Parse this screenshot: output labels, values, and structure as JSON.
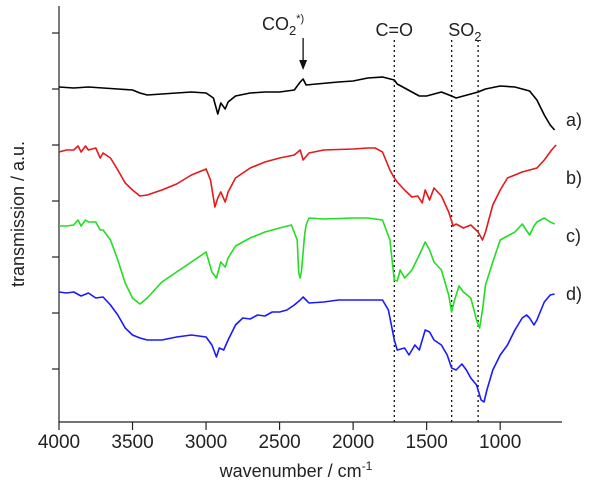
{
  "chart_data": {
    "type": "line",
    "xlabel": "wavenumber / cm",
    "xlabel_sup": "-1",
    "ylabel": "transmission / a.u.",
    "xlim": [
      4000,
      600
    ],
    "x_ticks": [
      4000,
      3500,
      3000,
      2500,
      2000,
      1500,
      1000
    ],
    "x_tick_labels": [
      "4000",
      "3500",
      "3000",
      "2500",
      "2000",
      "1500",
      "1000"
    ],
    "annotations": [
      {
        "label": "CO",
        "sub": "2",
        "sup": "*)",
        "x": 2340,
        "arrow": true
      },
      {
        "label": "C=O",
        "x": 1720,
        "dashed_line": true
      },
      {
        "label": "SO",
        "sub": "2",
        "x_lines": [
          1330,
          1150
        ]
      }
    ],
    "series": [
      {
        "name": "a)",
        "color": "#000000",
        "points": [
          [
            4000,
            87
          ],
          [
            3900,
            88
          ],
          [
            3800,
            87
          ],
          [
            3700,
            88
          ],
          [
            3600,
            89
          ],
          [
            3500,
            90
          ],
          [
            3450,
            93
          ],
          [
            3400,
            95
          ],
          [
            3300,
            94
          ],
          [
            3200,
            93
          ],
          [
            3100,
            92
          ],
          [
            3000,
            93
          ],
          [
            2950,
            98
          ],
          [
            2920,
            114
          ],
          [
            2900,
            103
          ],
          [
            2870,
            109
          ],
          [
            2850,
            102
          ],
          [
            2800,
            96
          ],
          [
            2700,
            93
          ],
          [
            2600,
            92
          ],
          [
            2500,
            92
          ],
          [
            2400,
            90
          ],
          [
            2360,
            82
          ],
          [
            2340,
            79
          ],
          [
            2320,
            85
          ],
          [
            2250,
            84
          ],
          [
            2100,
            82
          ],
          [
            2000,
            81
          ],
          [
            1900,
            78
          ],
          [
            1800,
            77
          ],
          [
            1720,
            80
          ],
          [
            1700,
            84
          ],
          [
            1650,
            88
          ],
          [
            1600,
            92
          ],
          [
            1550,
            96
          ],
          [
            1500,
            96
          ],
          [
            1450,
            94
          ],
          [
            1400,
            92
          ],
          [
            1330,
            96
          ],
          [
            1300,
            98
          ],
          [
            1250,
            96
          ],
          [
            1200,
            94
          ],
          [
            1150,
            92
          ],
          [
            1100,
            89
          ],
          [
            1000,
            86
          ],
          [
            900,
            87
          ],
          [
            800,
            91
          ],
          [
            750,
            100
          ],
          [
            700,
            115
          ],
          [
            660,
            125
          ],
          [
            630,
            130
          ]
        ]
      },
      {
        "name": "b)",
        "color": "#e31a1c",
        "points": [
          [
            4000,
            152
          ],
          [
            3950,
            150
          ],
          [
            3900,
            150
          ],
          [
            3870,
            146
          ],
          [
            3850,
            152
          ],
          [
            3820,
            146
          ],
          [
            3800,
            150
          ],
          [
            3750,
            148
          ],
          [
            3720,
            158
          ],
          [
            3700,
            153
          ],
          [
            3650,
            158
          ],
          [
            3600,
            170
          ],
          [
            3550,
            183
          ],
          [
            3500,
            190
          ],
          [
            3450,
            196
          ],
          [
            3400,
            195
          ],
          [
            3300,
            190
          ],
          [
            3200,
            184
          ],
          [
            3100,
            175
          ],
          [
            3000,
            169
          ],
          [
            2970,
            180
          ],
          [
            2940,
            207
          ],
          [
            2920,
            198
          ],
          [
            2900,
            192
          ],
          [
            2870,
            202
          ],
          [
            2850,
            192
          ],
          [
            2800,
            178
          ],
          [
            2700,
            168
          ],
          [
            2600,
            162
          ],
          [
            2500,
            158
          ],
          [
            2400,
            155
          ],
          [
            2360,
            150
          ],
          [
            2340,
            160
          ],
          [
            2300,
            153
          ],
          [
            2200,
            150
          ],
          [
            2000,
            149
          ],
          [
            1900,
            148
          ],
          [
            1850,
            148
          ],
          [
            1800,
            152
          ],
          [
            1750,
            170
          ],
          [
            1720,
            178
          ],
          [
            1700,
            182
          ],
          [
            1650,
            190
          ],
          [
            1600,
            197
          ],
          [
            1560,
            196
          ],
          [
            1530,
            203
          ],
          [
            1510,
            190
          ],
          [
            1480,
            200
          ],
          [
            1450,
            188
          ],
          [
            1400,
            196
          ],
          [
            1350,
            212
          ],
          [
            1320,
            226
          ],
          [
            1300,
            224
          ],
          [
            1250,
            228
          ],
          [
            1200,
            225
          ],
          [
            1150,
            232
          ],
          [
            1120,
            240
          ],
          [
            1100,
            232
          ],
          [
            1050,
            205
          ],
          [
            1000,
            190
          ],
          [
            950,
            178
          ],
          [
            900,
            175
          ],
          [
            850,
            172
          ],
          [
            800,
            170
          ],
          [
            750,
            168
          ],
          [
            700,
            160
          ],
          [
            650,
            150
          ],
          [
            620,
            145
          ]
        ]
      },
      {
        "name": "c)",
        "color": "#22dd22",
        "points": [
          [
            4000,
            226
          ],
          [
            3950,
            226
          ],
          [
            3900,
            225
          ],
          [
            3870,
            220
          ],
          [
            3850,
            226
          ],
          [
            3820,
            220
          ],
          [
            3800,
            222
          ],
          [
            3750,
            222
          ],
          [
            3720,
            230
          ],
          [
            3700,
            230
          ],
          [
            3650,
            240
          ],
          [
            3600,
            260
          ],
          [
            3550,
            283
          ],
          [
            3500,
            298
          ],
          [
            3450,
            304
          ],
          [
            3400,
            298
          ],
          [
            3300,
            282
          ],
          [
            3200,
            272
          ],
          [
            3100,
            262
          ],
          [
            3000,
            252
          ],
          [
            2960,
            272
          ],
          [
            2930,
            278
          ],
          [
            2900,
            262
          ],
          [
            2870,
            267
          ],
          [
            2850,
            258
          ],
          [
            2800,
            246
          ],
          [
            2700,
            238
          ],
          [
            2600,
            232
          ],
          [
            2500,
            228
          ],
          [
            2420,
            225
          ],
          [
            2380,
            240
          ],
          [
            2370,
            273
          ],
          [
            2360,
            278
          ],
          [
            2350,
            270
          ],
          [
            2330,
            235
          ],
          [
            2320,
            225
          ],
          [
            2300,
            218
          ],
          [
            2200,
            219
          ],
          [
            2000,
            218
          ],
          [
            1900,
            218
          ],
          [
            1800,
            220
          ],
          [
            1750,
            240
          ],
          [
            1720,
            280
          ],
          [
            1700,
            281
          ],
          [
            1680,
            270
          ],
          [
            1650,
            278
          ],
          [
            1600,
            270
          ],
          [
            1550,
            255
          ],
          [
            1510,
            242
          ],
          [
            1480,
            250
          ],
          [
            1450,
            262
          ],
          [
            1400,
            270
          ],
          [
            1350,
            295
          ],
          [
            1330,
            312
          ],
          [
            1310,
            300
          ],
          [
            1280,
            286
          ],
          [
            1250,
            292
          ],
          [
            1200,
            298
          ],
          [
            1160,
            320
          ],
          [
            1140,
            328
          ],
          [
            1120,
            310
          ],
          [
            1100,
            285
          ],
          [
            1050,
            262
          ],
          [
            1000,
            240
          ],
          [
            950,
            236
          ],
          [
            900,
            232
          ],
          [
            850,
            224
          ],
          [
            800,
            235
          ],
          [
            770,
            226
          ],
          [
            750,
            222
          ],
          [
            700,
            218
          ],
          [
            660,
            222
          ],
          [
            630,
            224
          ]
        ]
      },
      {
        "name": "d)",
        "color": "#1a1aff",
        "points": [
          [
            4000,
            292
          ],
          [
            3950,
            293
          ],
          [
            3900,
            292
          ],
          [
            3850,
            296
          ],
          [
            3800,
            293
          ],
          [
            3750,
            298
          ],
          [
            3700,
            297
          ],
          [
            3650,
            305
          ],
          [
            3600,
            315
          ],
          [
            3550,
            328
          ],
          [
            3500,
            335
          ],
          [
            3450,
            338
          ],
          [
            3400,
            340
          ],
          [
            3300,
            340
          ],
          [
            3200,
            337
          ],
          [
            3100,
            335
          ],
          [
            3000,
            337
          ],
          [
            2960,
            345
          ],
          [
            2930,
            357
          ],
          [
            2910,
            348
          ],
          [
            2880,
            350
          ],
          [
            2850,
            340
          ],
          [
            2800,
            325
          ],
          [
            2750,
            318
          ],
          [
            2700,
            319
          ],
          [
            2650,
            315
          ],
          [
            2600,
            316
          ],
          [
            2550,
            312
          ],
          [
            2500,
            312
          ],
          [
            2450,
            310
          ],
          [
            2400,
            305
          ],
          [
            2360,
            300
          ],
          [
            2340,
            297
          ],
          [
            2320,
            300
          ],
          [
            2300,
            303
          ],
          [
            2200,
            302
          ],
          [
            2100,
            300
          ],
          [
            2000,
            300
          ],
          [
            1900,
            300
          ],
          [
            1800,
            300
          ],
          [
            1760,
            310
          ],
          [
            1720,
            340
          ],
          [
            1700,
            350
          ],
          [
            1650,
            348
          ],
          [
            1620,
            355
          ],
          [
            1580,
            345
          ],
          [
            1550,
            350
          ],
          [
            1510,
            330
          ],
          [
            1480,
            332
          ],
          [
            1450,
            340
          ],
          [
            1400,
            345
          ],
          [
            1360,
            355
          ],
          [
            1330,
            368
          ],
          [
            1300,
            370
          ],
          [
            1260,
            364
          ],
          [
            1230,
            370
          ],
          [
            1200,
            378
          ],
          [
            1160,
            385
          ],
          [
            1130,
            400
          ],
          [
            1110,
            402
          ],
          [
            1090,
            390
          ],
          [
            1050,
            370
          ],
          [
            1000,
            355
          ],
          [
            950,
            345
          ],
          [
            900,
            330
          ],
          [
            850,
            318
          ],
          [
            820,
            315
          ],
          [
            800,
            318
          ],
          [
            770,
            325
          ],
          [
            750,
            320
          ],
          [
            700,
            302
          ],
          [
            660,
            295
          ],
          [
            630,
            294
          ]
        ]
      }
    ]
  }
}
